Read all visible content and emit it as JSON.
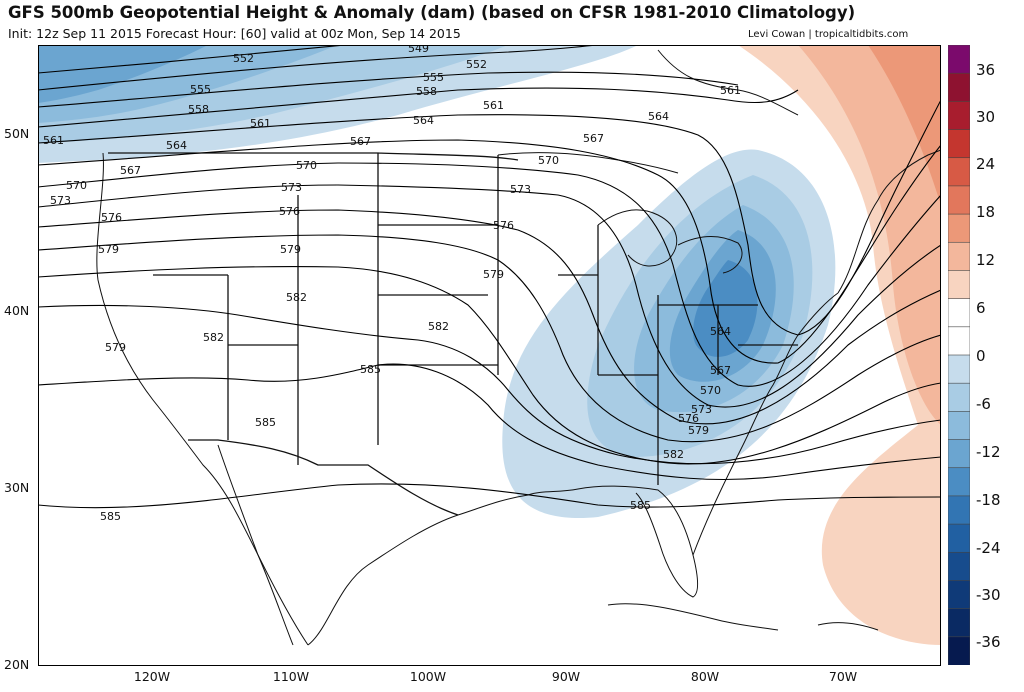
{
  "header": {
    "title": "GFS 500mb Geopotential Height & Anomaly (dam) (based on CFSR 1981-2010 Climatology)",
    "subtitle": "Init: 12z Sep 11 2015   Forecast Hour: [60]   valid at 00z Mon, Sep 14 2015",
    "credit": "Levi Cowan | tropicaltidbits.com"
  },
  "axes": {
    "lat_labels": [
      "50N",
      "40N",
      "30N",
      "20N"
    ],
    "lon_labels": [
      "120W",
      "110W",
      "100W",
      "90W",
      "80W",
      "70W"
    ]
  },
  "contour_labels": {
    "c549": "549",
    "c552a": "552",
    "c552b": "552",
    "c555a": "555",
    "c555b": "555",
    "c558a": "558",
    "c558b": "558",
    "c561a": "561",
    "c561b": "561",
    "c561c": "561",
    "c561d": "561",
    "c564a": "564",
    "c564b": "564",
    "c564c": "564",
    "c564d": "564",
    "c567a": "567",
    "c567b": "567",
    "c567c": "567",
    "c567d": "567",
    "c570a": "570",
    "c570b": "570",
    "c570c": "570",
    "c570d": "570",
    "c573a": "573",
    "c573b": "573",
    "c573c": "573",
    "c573d": "573",
    "c576a": "576",
    "c576b": "576",
    "c576c": "576",
    "c576d": "576",
    "c579a": "579",
    "c579b": "579",
    "c579c": "579",
    "c579d": "579",
    "c582a": "582",
    "c582b": "582",
    "c582c": "582",
    "c582d": "582",
    "c585a": "585",
    "c585b": "585",
    "c585c": "585",
    "c585d": "585"
  },
  "colorbar": {
    "labels": [
      "36",
      "30",
      "24",
      "18",
      "12",
      "6",
      "0",
      "-6",
      "-12",
      "-18",
      "-24",
      "-30",
      "-36"
    ],
    "colors": [
      "#7b0a6c",
      "#8e1230",
      "#a81d2e",
      "#c4362f",
      "#d75a45",
      "#e2775c",
      "#ec9878",
      "#f3b79c",
      "#f8d4c0",
      "#ffffff",
      "#ffffff",
      "#c6dcec",
      "#a9cce4",
      "#8cbbdc",
      "#6ba5d0",
      "#4b8dc3",
      "#3275b3",
      "#2160a2",
      "#174c8d",
      "#0f3a78",
      "#0a2a63",
      "#061a4f"
    ]
  }
}
